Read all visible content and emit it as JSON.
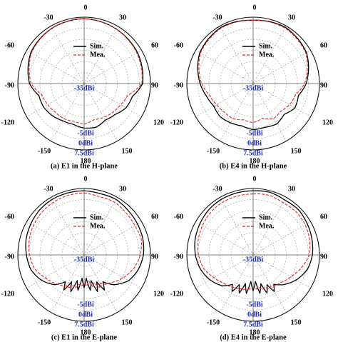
{
  "colors": {
    "simulated": "#000000",
    "measured": "#e8231c",
    "db_labels": "#1f2fbf",
    "grid": "#9a9a9a"
  },
  "chart_data": [
    {
      "type": "polar",
      "caption": "(a) E1 in the H-plane",
      "angle_ticks": [
        "0",
        "30",
        "60",
        "90",
        "120",
        "150",
        "180",
        "-150",
        "-120",
        "-90",
        "-60",
        "-30"
      ],
      "radial_labels": [
        "-35dBi",
        "-5dBi",
        "0dBi",
        "7.5dBi"
      ],
      "rlim": [
        -35,
        7.5
      ],
      "legend": [
        "Sim.",
        "Mea."
      ],
      "theta": [
        0,
        30,
        60,
        90,
        105,
        120,
        135,
        150,
        165,
        180,
        195,
        210,
        225,
        240,
        255,
        270,
        300,
        330
      ],
      "series": [
        {
          "name": "Sim.",
          "values": [
            6.5,
            5.5,
            4.5,
            2.5,
            -3,
            -4,
            -7,
            -8,
            -6,
            -6.5,
            -8,
            -7.5,
            -6,
            -5,
            -5,
            0,
            4.5,
            6
          ]
        },
        {
          "name": "Mea.",
          "values": [
            6.5,
            5.5,
            4,
            2,
            -6,
            -8,
            -9,
            -10,
            -11,
            -9,
            -10,
            -9,
            -9,
            -8,
            -7,
            -1,
            4,
            6
          ]
        }
      ]
    },
    {
      "type": "polar",
      "caption": "(b) E4 in the H-plane",
      "angle_ticks": [
        "0",
        "30",
        "60",
        "90",
        "120",
        "150",
        "180",
        "-150",
        "-120",
        "-90",
        "-60",
        "-30"
      ],
      "radial_labels": [
        "-35dBi",
        "-5dBi",
        "0dBi",
        "7.5dBi"
      ],
      "rlim": [
        -35,
        7.5
      ],
      "legend": [
        "Sim.",
        "Mea."
      ],
      "theta": [
        0,
        30,
        60,
        90,
        105,
        120,
        135,
        150,
        165,
        180,
        195,
        210,
        225,
        240,
        255,
        270,
        300,
        330
      ],
      "series": [
        {
          "name": "Sim.",
          "values": [
            5.5,
            6.5,
            4.5,
            -1,
            -5,
            -4,
            -7,
            -5,
            -6,
            -5.5,
            -7,
            -6,
            -5,
            -6,
            -4,
            -1,
            4.5,
            6.5
          ]
        },
        {
          "name": "Mea.",
          "values": [
            5.5,
            6,
            4,
            -2,
            -7,
            -8,
            -10,
            -9,
            -12,
            -10,
            -11,
            -9,
            -9,
            -8,
            -6,
            -2,
            4,
            6
          ]
        }
      ]
    },
    {
      "type": "polar",
      "caption": "(c) E1 in the E-plane",
      "angle_ticks": [
        "0",
        "30",
        "60",
        "90",
        "120",
        "150",
        "180",
        "-150",
        "-120",
        "-90",
        "-60",
        "-30"
      ],
      "radial_labels": [
        "-35dBi",
        "-5dBi",
        "0dBi",
        "7.5dBi"
      ],
      "rlim": [
        -35,
        7.5
      ],
      "legend": [
        "Sim.",
        "Mea."
      ],
      "theta": [
        0,
        15,
        30,
        45,
        60,
        75,
        90,
        105,
        120,
        135,
        145,
        150,
        155,
        160,
        165,
        170,
        175,
        180,
        185,
        190,
        195,
        200,
        205,
        210,
        215,
        225,
        240,
        255,
        270,
        285,
        300,
        315,
        330,
        345
      ],
      "series": [
        {
          "name": "Sim.",
          "values": [
            6,
            5.5,
            6,
            5,
            4.5,
            4,
            3,
            1,
            -2,
            -8,
            -14,
            -9,
            -16,
            -10,
            -18,
            -12,
            -20,
            -14,
            -20,
            -12,
            -18,
            -10,
            -16,
            -9,
            -14,
            -8,
            -3,
            0.5,
            2,
            3.5,
            4.5,
            5.5,
            6,
            6
          ]
        },
        {
          "name": "Mea.",
          "values": [
            4.5,
            3.5,
            4,
            3,
            2.5,
            3,
            1,
            -2,
            -6,
            -10,
            -12,
            -14,
            -12,
            -16,
            -14,
            -18,
            -15,
            -17,
            -15,
            -16,
            -13,
            -14,
            -12,
            -12,
            -11,
            -9,
            -6,
            -2,
            0,
            1.5,
            2.5,
            3.5,
            4,
            4.5
          ]
        }
      ]
    },
    {
      "type": "polar",
      "caption": "(d) E4 in the E-plane",
      "angle_ticks": [
        "0",
        "30",
        "60",
        "90",
        "120",
        "150",
        "180",
        "-150",
        "-120",
        "-90",
        "-60",
        "-30"
      ],
      "radial_labels": [
        "-35dBi",
        "-5dBi",
        "0dBi",
        "7.5dBi"
      ],
      "rlim": [
        -35,
        7.5
      ],
      "legend": [
        "Sim.",
        "Mea."
      ],
      "theta": [
        0,
        15,
        30,
        45,
        60,
        75,
        90,
        105,
        120,
        135,
        145,
        150,
        155,
        160,
        165,
        170,
        175,
        180,
        185,
        190,
        195,
        200,
        205,
        210,
        215,
        225,
        240,
        255,
        270,
        285,
        300,
        315,
        330,
        345
      ],
      "series": [
        {
          "name": "Sim.",
          "values": [
            6,
            6.5,
            5.5,
            6,
            5,
            4,
            3,
            1,
            -3,
            -8,
            -12,
            -8,
            -14,
            -9,
            -16,
            -10,
            -18,
            -12,
            -18,
            -10,
            -16,
            -9,
            -14,
            -8,
            -12,
            -7,
            -3,
            0,
            2,
            3.5,
            4.5,
            5.5,
            6,
            6
          ]
        },
        {
          "name": "Mea.",
          "values": [
            4,
            4.5,
            3.5,
            4,
            3.5,
            2.5,
            1,
            -3,
            -7,
            -10,
            -11,
            -12,
            -11,
            -13,
            -12,
            -14,
            -13,
            -14,
            -13,
            -13,
            -12,
            -12,
            -11,
            -11,
            -10,
            -9,
            -6,
            -2,
            0,
            1.5,
            2.5,
            3.5,
            4,
            4
          ]
        }
      ]
    }
  ]
}
